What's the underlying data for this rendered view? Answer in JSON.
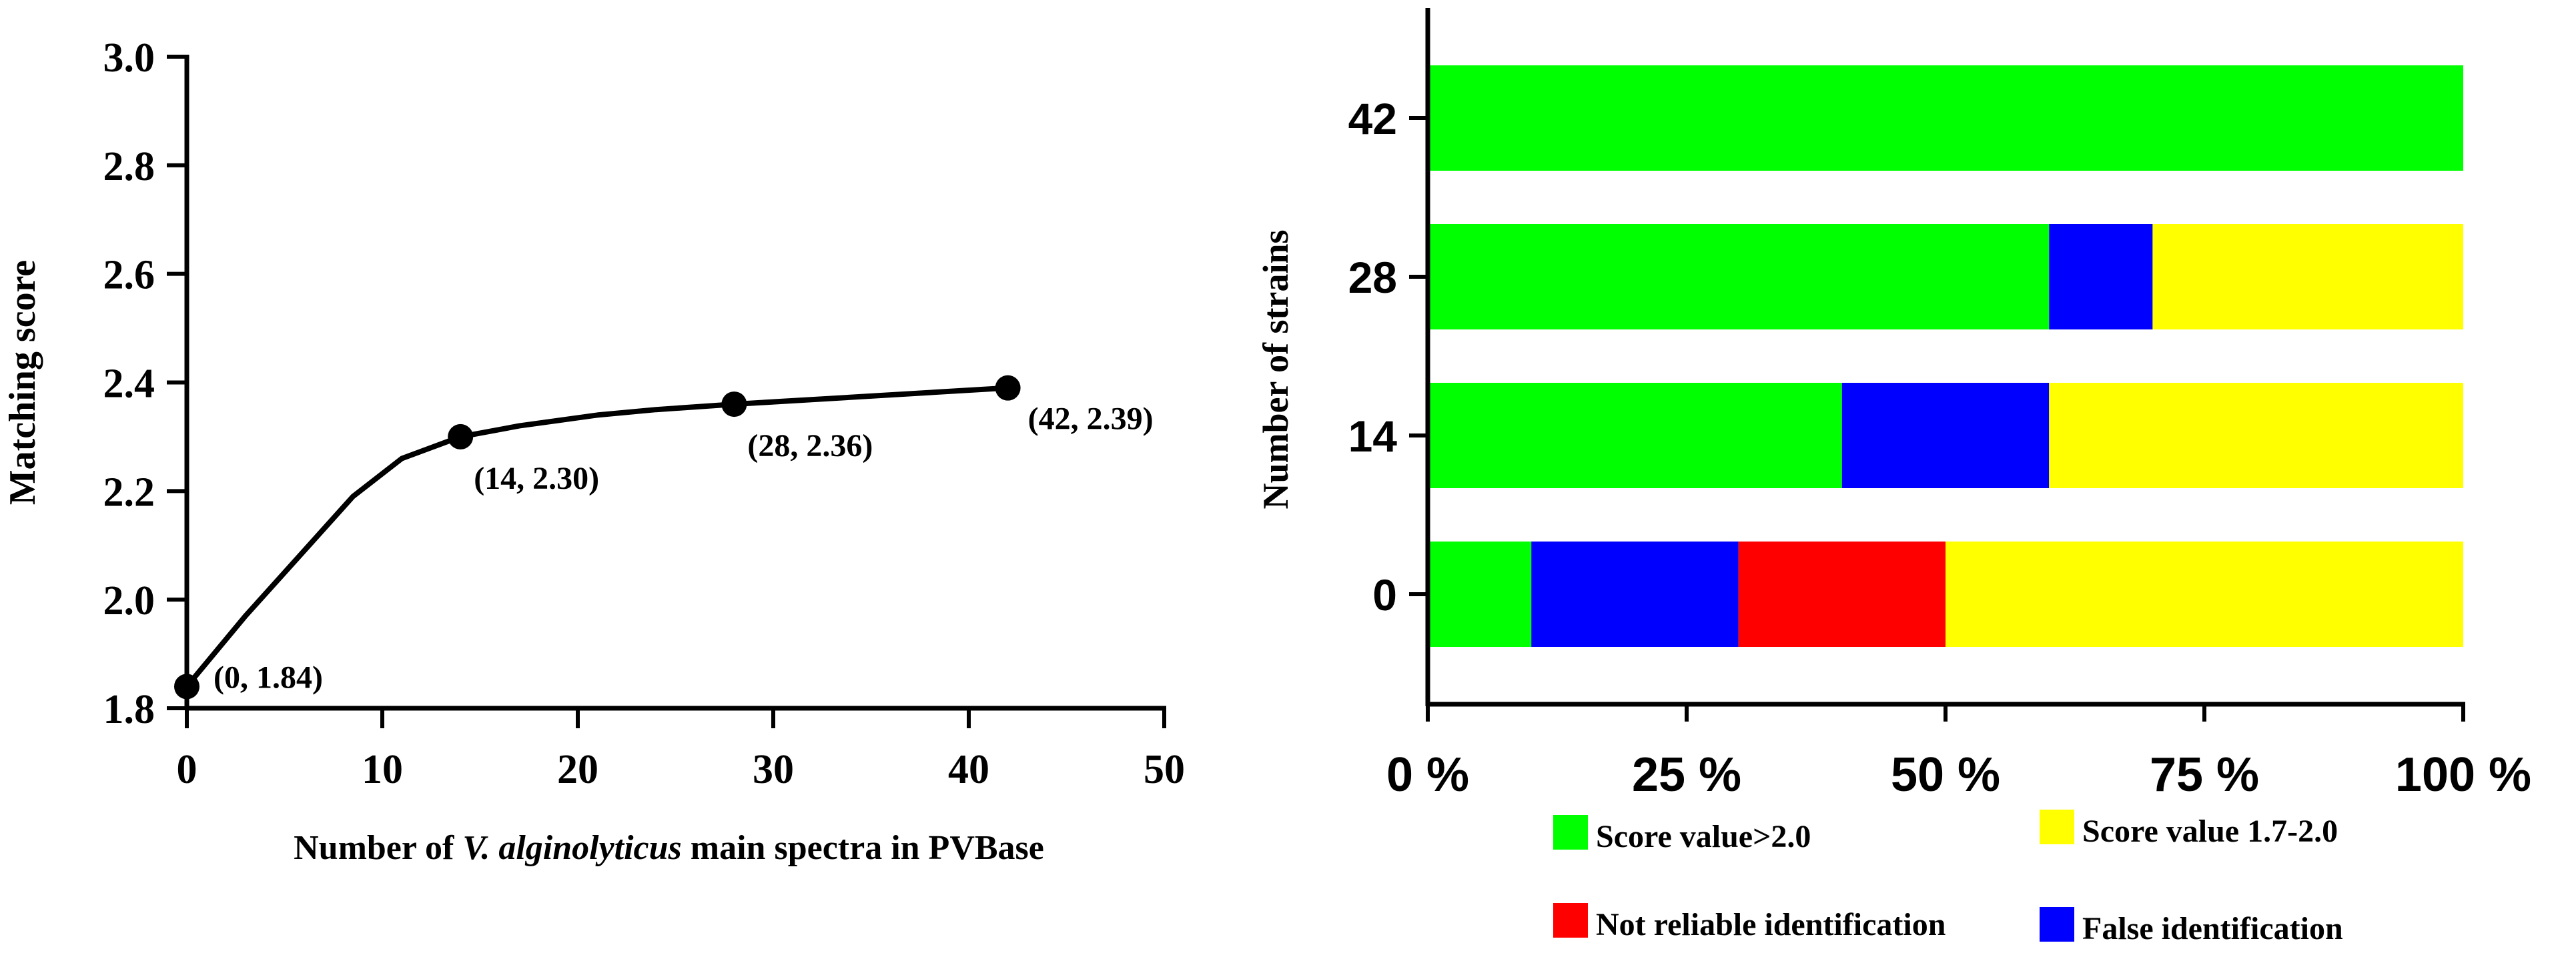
{
  "chart_data": [
    {
      "type": "line",
      "title": "",
      "xlabel_parts": [
        "Number of ",
        "V. alginolyticus",
        " main spectra in PVBase"
      ],
      "ylabel": "Matching score",
      "xlim": [
        0,
        50
      ],
      "ylim": [
        1.8,
        3.0
      ],
      "xticks": [
        0,
        10,
        20,
        30,
        40,
        50
      ],
      "xtick_labels": [
        "0",
        "10",
        "20",
        "30",
        "40",
        "50"
      ],
      "yticks": [
        1.8,
        2.0,
        2.2,
        2.4,
        2.6,
        2.8,
        3.0
      ],
      "ytick_labels": [
        "1.8",
        "2.0",
        "2.2",
        "2.4",
        "2.6",
        "2.8",
        "3.0"
      ],
      "grid": false,
      "series": [
        {
          "name": "Matching score",
          "points": [
            {
              "x": 0,
              "y": 1.84,
              "label": "(0, 1.84)"
            },
            {
              "x": 14,
              "y": 2.3,
              "label": "(14, 2.30)"
            },
            {
              "x": 28,
              "y": 2.36,
              "label": "(28, 2.36)"
            },
            {
              "x": 42,
              "y": 2.39,
              "label": "(42, 2.39)"
            }
          ],
          "curve": [
            [
              0,
              1.84
            ],
            [
              3,
              1.97
            ],
            [
              6,
              2.09
            ],
            [
              8.5,
              2.19
            ],
            [
              11,
              2.26
            ],
            [
              14,
              2.3
            ],
            [
              17,
              2.32
            ],
            [
              21,
              2.34
            ],
            [
              24,
              2.35
            ],
            [
              28,
              2.36
            ],
            [
              35,
              2.375
            ],
            [
              42,
              2.39
            ]
          ]
        }
      ]
    },
    {
      "type": "bar",
      "orientation": "horizontal",
      "stacked": true,
      "normalized_percent": true,
      "ylabel": "Number of strains",
      "categories": [
        "42",
        "28",
        "14",
        "0"
      ],
      "xlim": [
        0,
        100
      ],
      "xtick_values": [
        0,
        25,
        50,
        75,
        100
      ],
      "xtick_labels": [
        "0 %",
        "25 %",
        "50 %",
        "75 %",
        "100 %"
      ],
      "grid": false,
      "legend_position": "bottom",
      "series": [
        {
          "name": "Score value>2.0",
          "color": "#00ff00",
          "values": [
            100,
            60,
            40,
            10
          ]
        },
        {
          "name": "False identification",
          "color": "#0000ff",
          "values": [
            0,
            10,
            20,
            20
          ]
        },
        {
          "name": "Not reliable identification",
          "color": "#ff0000",
          "values": [
            0,
            0,
            0,
            20
          ]
        },
        {
          "name": "Score value 1.7-2.0",
          "color": "#ffff00",
          "values": [
            0,
            30,
            40,
            50
          ]
        }
      ],
      "legend": [
        {
          "name": "Score value>2.0",
          "color": "#00ff00"
        },
        {
          "name": "Score value 1.7-2.0",
          "color": "#ffff00"
        },
        {
          "name": "Not reliable identification",
          "color": "#ff0000"
        },
        {
          "name": "False identification",
          "color": "#0000ff"
        }
      ]
    }
  ]
}
